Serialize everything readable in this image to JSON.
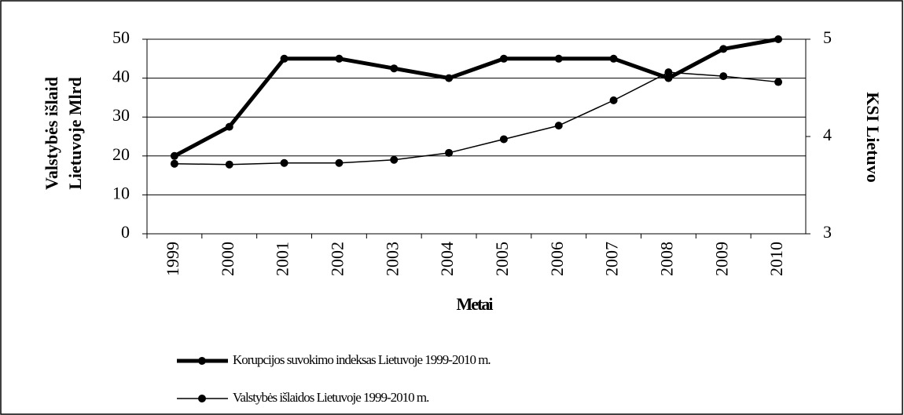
{
  "chart_data": {
    "type": "line",
    "x_label": "Metai",
    "y_label": [
      "Valstybės išlaid",
      "Lietuvoje Mlrd"
    ],
    "y2_label": "KSI Lietuvo",
    "categories": [
      "1999",
      "2000",
      "2001",
      "2002",
      "2003",
      "2004",
      "2005",
      "2006",
      "2007",
      "2008",
      "2009",
      "2010"
    ],
    "series": [
      {
        "name": "Korupcijos suvokimo indeksas Lietuvoje 1999-2010 m.",
        "color": "#000000",
        "width": 5,
        "axis": "y2",
        "values": [
          3.8,
          4.1,
          4.8,
          4.8,
          4.7,
          4.6,
          4.8,
          4.8,
          4.8,
          4.6,
          4.9,
          5.0
        ]
      },
      {
        "name": "Valstybės išlaidos Lietuvoje 1999-2010 m.",
        "color": "#000000",
        "width": 1.5,
        "axis": "y",
        "values": [
          18,
          17.8,
          18.2,
          18.2,
          19,
          20.8,
          24.3,
          27.8,
          34.3,
          41.5,
          40.5,
          39
        ]
      }
    ],
    "ylim": [
      0,
      50
    ],
    "yticks": [
      0,
      10,
      20,
      30,
      40,
      50
    ],
    "y2lim": [
      3,
      5
    ],
    "y2ticks": [
      3,
      4,
      5
    ],
    "grid": true,
    "legend": "bottom"
  }
}
